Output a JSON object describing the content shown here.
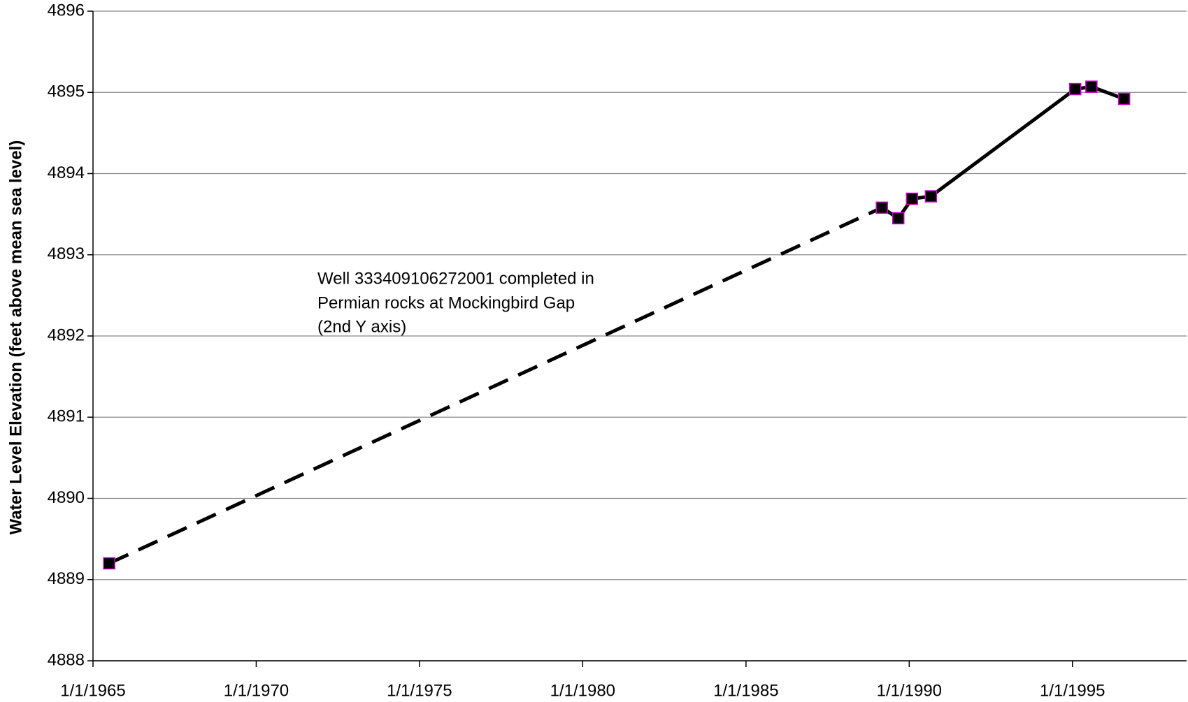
{
  "chart_data": {
    "type": "line",
    "ylabel": "Water Level Elevation (feet above mean sea level)",
    "annotation": [
      "Well 333409106272001 completed in",
      "Permian rocks at Mockingbird Gap",
      "(2nd Y axis)"
    ],
    "x": [
      "1965-07-01",
      "1989-03-01",
      "1989-09-01",
      "1990-02-01",
      "1990-09-01",
      "1995-02-01",
      "1995-08-01",
      "1996-08-01"
    ],
    "series": [
      {
        "values": [
          4889.2,
          4893.58,
          4893.45,
          4893.69,
          4893.72,
          4895.04,
          4895.07,
          4894.92
        ],
        "color": "#000000",
        "marker_edge": "#cc00cc",
        "dashed_segments": [
          0
        ]
      }
    ],
    "xlim": [
      "1965-01-01",
      "1998-07-01"
    ],
    "xticks": [
      {
        "value": "1965-01-01",
        "label": "1/1/1965"
      },
      {
        "value": "1970-01-01",
        "label": "1/1/1970"
      },
      {
        "value": "1975-01-01",
        "label": "1/1/1975"
      },
      {
        "value": "1980-01-01",
        "label": "1/1/1980"
      },
      {
        "value": "1985-01-01",
        "label": "1/1/1985"
      },
      {
        "value": "1990-01-01",
        "label": "1/1/1990"
      },
      {
        "value": "1995-01-01",
        "label": "1/1/1995"
      }
    ],
    "ylim": [
      4888,
      4896
    ],
    "yticks": [
      4888,
      4889,
      4890,
      4891,
      4892,
      4893,
      4894,
      4895,
      4896
    ],
    "grid": true
  }
}
